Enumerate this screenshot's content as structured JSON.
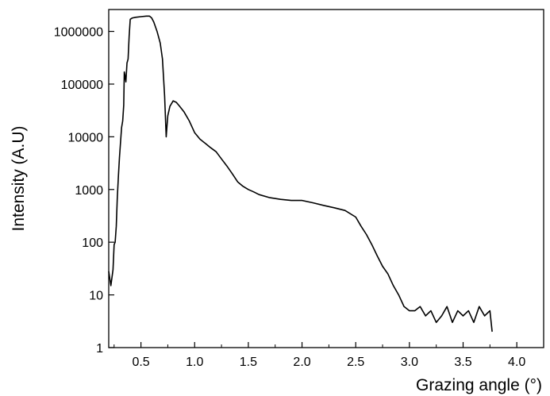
{
  "chart_data": {
    "type": "line",
    "title": "",
    "xlabel": "Grazing angle (°)",
    "ylabel": "Intensity (A.U)",
    "xlim": [
      0.2,
      4.25
    ],
    "ylim": [
      1,
      2600000
    ],
    "yscale": "log",
    "grid": false,
    "legend": "none",
    "x_ticks": [
      0.5,
      1.0,
      1.5,
      2.0,
      2.5,
      3.0,
      3.5,
      4.0
    ],
    "x_tick_labels": [
      "0.5",
      "1.0",
      "1.5",
      "2.0",
      "2.5",
      "3.0",
      "3.5",
      "4.0"
    ],
    "y_ticks": [
      1,
      10,
      100,
      1000,
      10000,
      100000,
      1000000
    ],
    "y_tick_labels": [
      "1",
      "10",
      "100",
      "1000",
      "10000",
      "100000",
      "1000000"
    ],
    "line_color": "#000000",
    "series": [
      {
        "x": [
          0.2,
          0.22,
          0.24,
          0.25,
          0.26,
          0.27,
          0.28,
          0.29,
          0.3,
          0.31,
          0.32,
          0.33,
          0.34,
          0.345,
          0.35,
          0.36,
          0.37,
          0.38,
          0.39,
          0.4,
          0.42,
          0.45,
          0.5,
          0.55,
          0.58,
          0.6,
          0.62,
          0.65,
          0.68,
          0.7,
          0.72,
          0.735,
          0.75,
          0.77,
          0.8,
          0.83,
          0.86,
          0.9,
          0.95,
          1.0,
          1.05,
          1.1,
          1.15,
          1.2,
          1.25,
          1.3,
          1.35,
          1.4,
          1.45,
          1.5,
          1.55,
          1.6,
          1.7,
          1.8,
          1.9,
          2.0,
          2.1,
          2.2,
          2.3,
          2.4,
          2.5,
          2.55,
          2.6,
          2.65,
          2.7,
          2.75,
          2.8,
          2.85,
          2.9,
          2.95,
          3.0,
          3.05,
          3.1,
          3.15,
          3.2,
          3.25,
          3.3,
          3.35,
          3.4,
          3.45,
          3.5,
          3.55,
          3.6,
          3.65,
          3.7,
          3.75,
          3.77
        ],
        "y": [
          28,
          15,
          30,
          90,
          100,
          200,
          700,
          1800,
          4000,
          8000,
          15000,
          20000,
          40000,
          170000,
          150000,
          110000,
          250000,
          300000,
          800000,
          1700000,
          1800000,
          1850000,
          1900000,
          1950000,
          1950000,
          1800000,
          1500000,
          1000000,
          600000,
          300000,
          60000,
          10000,
          25000,
          38000,
          48000,
          45000,
          38000,
          30000,
          20000,
          12000,
          9000,
          7500,
          6200,
          5200,
          3800,
          2800,
          2000,
          1400,
          1150,
          1000,
          900,
          800,
          700,
          650,
          620,
          620,
          560,
          500,
          450,
          400,
          300,
          200,
          140,
          90,
          55,
          35,
          25,
          15,
          10,
          6,
          5,
          5,
          6,
          4,
          5,
          3,
          4,
          6,
          3,
          5,
          4,
          5,
          3,
          6,
          4,
          5,
          2
        ]
      }
    ]
  }
}
